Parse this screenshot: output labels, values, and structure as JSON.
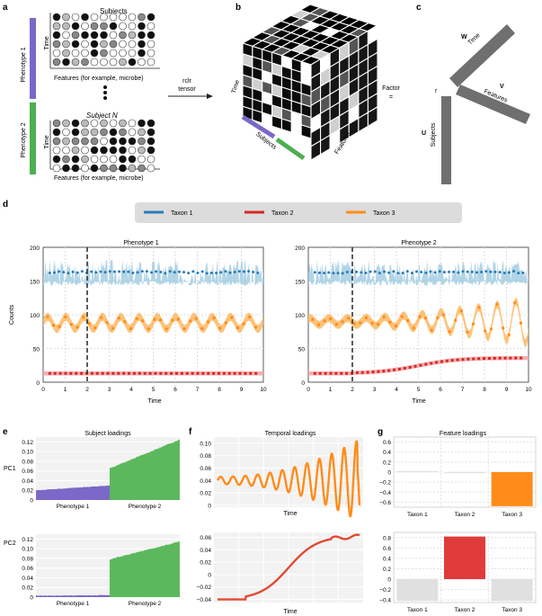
{
  "panels": {
    "a": {
      "letter": "a",
      "subjects_title": "Subjects",
      "subject_n_title": "Subject N",
      "time_label": "Time",
      "features_label": "Features (for example, microbe)",
      "phenotype1": "Phenotype 1",
      "phenotype2": "Phenotype 2",
      "arrow_label_1": "rclr",
      "arrow_label_2": "tensor",
      "colors": {
        "phenotype1": "#7b68c8",
        "phenotype2": "#4caf50"
      }
    },
    "b": {
      "letter": "b",
      "time": "Time",
      "subjects": "Subjects",
      "features": "Features"
    },
    "factor": {
      "label": "Factor",
      "eq": "="
    },
    "c": {
      "letter": "c",
      "w": "W",
      "w_axis": "Time",
      "v": "V",
      "v_axis": "Features",
      "u": "U",
      "u_axis": "Subjects",
      "r": "r"
    },
    "d": {
      "letter": "d",
      "legend": [
        {
          "label": "Taxon 1",
          "color": "#2c7bb6"
        },
        {
          "label": "Taxon 2",
          "color": "#d62728"
        },
        {
          "label": "Taxon 3",
          "color": "#ff8c1a"
        }
      ],
      "ylabel": "Counts",
      "xlabel": "Time",
      "left_title": "Phenotype 1",
      "right_title": "Phenotype 2",
      "yticks": [
        "200",
        "150",
        "100",
        "50",
        "0"
      ],
      "xticks": [
        "0",
        "1",
        "2",
        "3",
        "4",
        "5",
        "6",
        "7",
        "8",
        "9",
        "10"
      ]
    },
    "e": {
      "letter": "e",
      "title": "Subject loadings",
      "pc1": "PC1",
      "pc2": "PC2",
      "xcats": [
        "Phenotype 1",
        "Phenotype 2"
      ],
      "pc1_ticks": [
        "0.12",
        "0.10",
        "0.08",
        "0.06",
        "0.04",
        "0.02",
        "0"
      ],
      "pc2_ticks": [
        "0.12",
        "0.10",
        "0.08",
        "0.06",
        "0.04",
        "0.02",
        "0"
      ]
    },
    "f": {
      "letter": "f",
      "title": "Temporal loadings",
      "xlabel": "Time",
      "top_ticks": [
        "0.10",
        "0.08",
        "0.06",
        "0.04",
        "0.02",
        "0"
      ],
      "bottom_ticks": [
        "0.06",
        "0.04",
        "0.02",
        "0",
        "−0.02",
        "−0.04"
      ]
    },
    "g": {
      "letter": "g",
      "title": "Feature loadings",
      "xcats": [
        "Taxon 1",
        "Taxon 2",
        "Taxon 3"
      ],
      "top_ticks": [
        "0.6",
        "0.4",
        "0.2",
        "0",
        "−0.2",
        "−0.4",
        "−0.6"
      ],
      "bottom_ticks": [
        "0.8",
        "0.6",
        "0.4",
        "0.2",
        "0",
        "−0.2",
        "−0.4"
      ]
    }
  },
  "chart_data": [
    {
      "type": "line",
      "title": "Phenotype 1",
      "xlabel": "Time",
      "ylabel": "Counts",
      "xlim": [
        0,
        10
      ],
      "ylim": [
        0,
        200
      ],
      "series": [
        {
          "name": "Taxon 1",
          "mean": 163,
          "band": [
            145,
            185
          ]
        },
        {
          "name": "Taxon 2",
          "mean": 13,
          "band": [
            10,
            16
          ]
        },
        {
          "name": "Taxon 3",
          "mean": 88,
          "amplitude": 9,
          "period": 0.83
        }
      ],
      "vline_x": 2
    },
    {
      "type": "line",
      "title": "Phenotype 2",
      "xlabel": "Time",
      "ylabel": "Counts",
      "xlim": [
        0,
        10
      ],
      "ylim": [
        0,
        200
      ],
      "series": [
        {
          "name": "Taxon 1",
          "mean": 163,
          "band": [
            145,
            185
          ]
        },
        {
          "name": "Taxon 2",
          "start": 13,
          "end": 36
        },
        {
          "name": "Taxon 3",
          "mean": 90,
          "amplitude_end": 33
        }
      ],
      "vline_x": 2
    },
    {
      "type": "bar",
      "title": "Subject loadings",
      "ylabel": "PC1",
      "categories": [
        "Phenotype 1",
        "Phenotype 2"
      ],
      "ranges": [
        [
          0.02,
          0.03
        ],
        [
          0.065,
          0.125
        ]
      ],
      "ylim": [
        0,
        0.13
      ]
    },
    {
      "type": "bar",
      "ylabel": "PC2",
      "categories": [
        "Phenotype 1",
        "Phenotype 2"
      ],
      "ranges": [
        [
          0.003,
          0.004
        ],
        [
          0.078,
          0.115
        ]
      ],
      "ylim": [
        0,
        0.13
      ]
    },
    {
      "type": "line",
      "title": "Temporal loadings",
      "xlabel": "Time",
      "mean": 0.04,
      "ylim": [
        -0.003,
        0.11
      ]
    },
    {
      "type": "line",
      "xlabel": "Time",
      "start": -0.04,
      "end": 0.062,
      "ylim": [
        -0.045,
        0.068
      ]
    },
    {
      "type": "bar",
      "title": "Feature loadings",
      "categories": [
        "Taxon 1",
        "Taxon 2",
        "Taxon 3"
      ],
      "values": [
        0.02,
        -0.02,
        -0.68
      ],
      "ylim": [
        -0.7,
        0.7
      ]
    },
    {
      "type": "bar",
      "categories": [
        "Taxon 1",
        "Taxon 2",
        "Taxon 3"
      ],
      "values": [
        -0.42,
        0.82,
        -0.42
      ],
      "ylim": [
        -0.45,
        0.9
      ]
    }
  ]
}
